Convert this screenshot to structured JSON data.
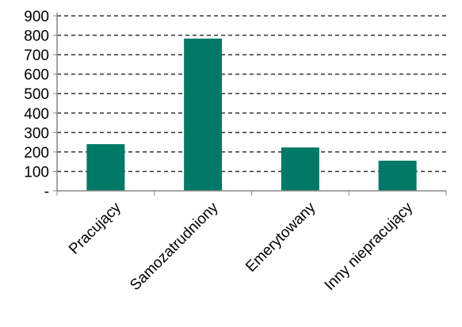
{
  "chart_data": {
    "type": "bar",
    "categories": [
      "Pracujący",
      "Samozatrudniony",
      "Emerytowany",
      "Inny niepracujący"
    ],
    "values": [
      240,
      783,
      223,
      155
    ],
    "ylim": [
      0,
      900
    ],
    "yticks": [
      {
        "value": 0,
        "label": "-"
      },
      {
        "value": 100,
        "label": "100"
      },
      {
        "value": 200,
        "label": "200"
      },
      {
        "value": 300,
        "label": "300"
      },
      {
        "value": 400,
        "label": "400"
      },
      {
        "value": 500,
        "label": "500"
      },
      {
        "value": 600,
        "label": "600"
      },
      {
        "value": 700,
        "label": "700"
      },
      {
        "value": 800,
        "label": "800"
      },
      {
        "value": 900,
        "label": "900"
      }
    ],
    "grid": true,
    "grid_style": "dashed",
    "legend": "none",
    "bar_color": "#007a66",
    "axis_color": "#888888",
    "grid_color": "#333333"
  }
}
